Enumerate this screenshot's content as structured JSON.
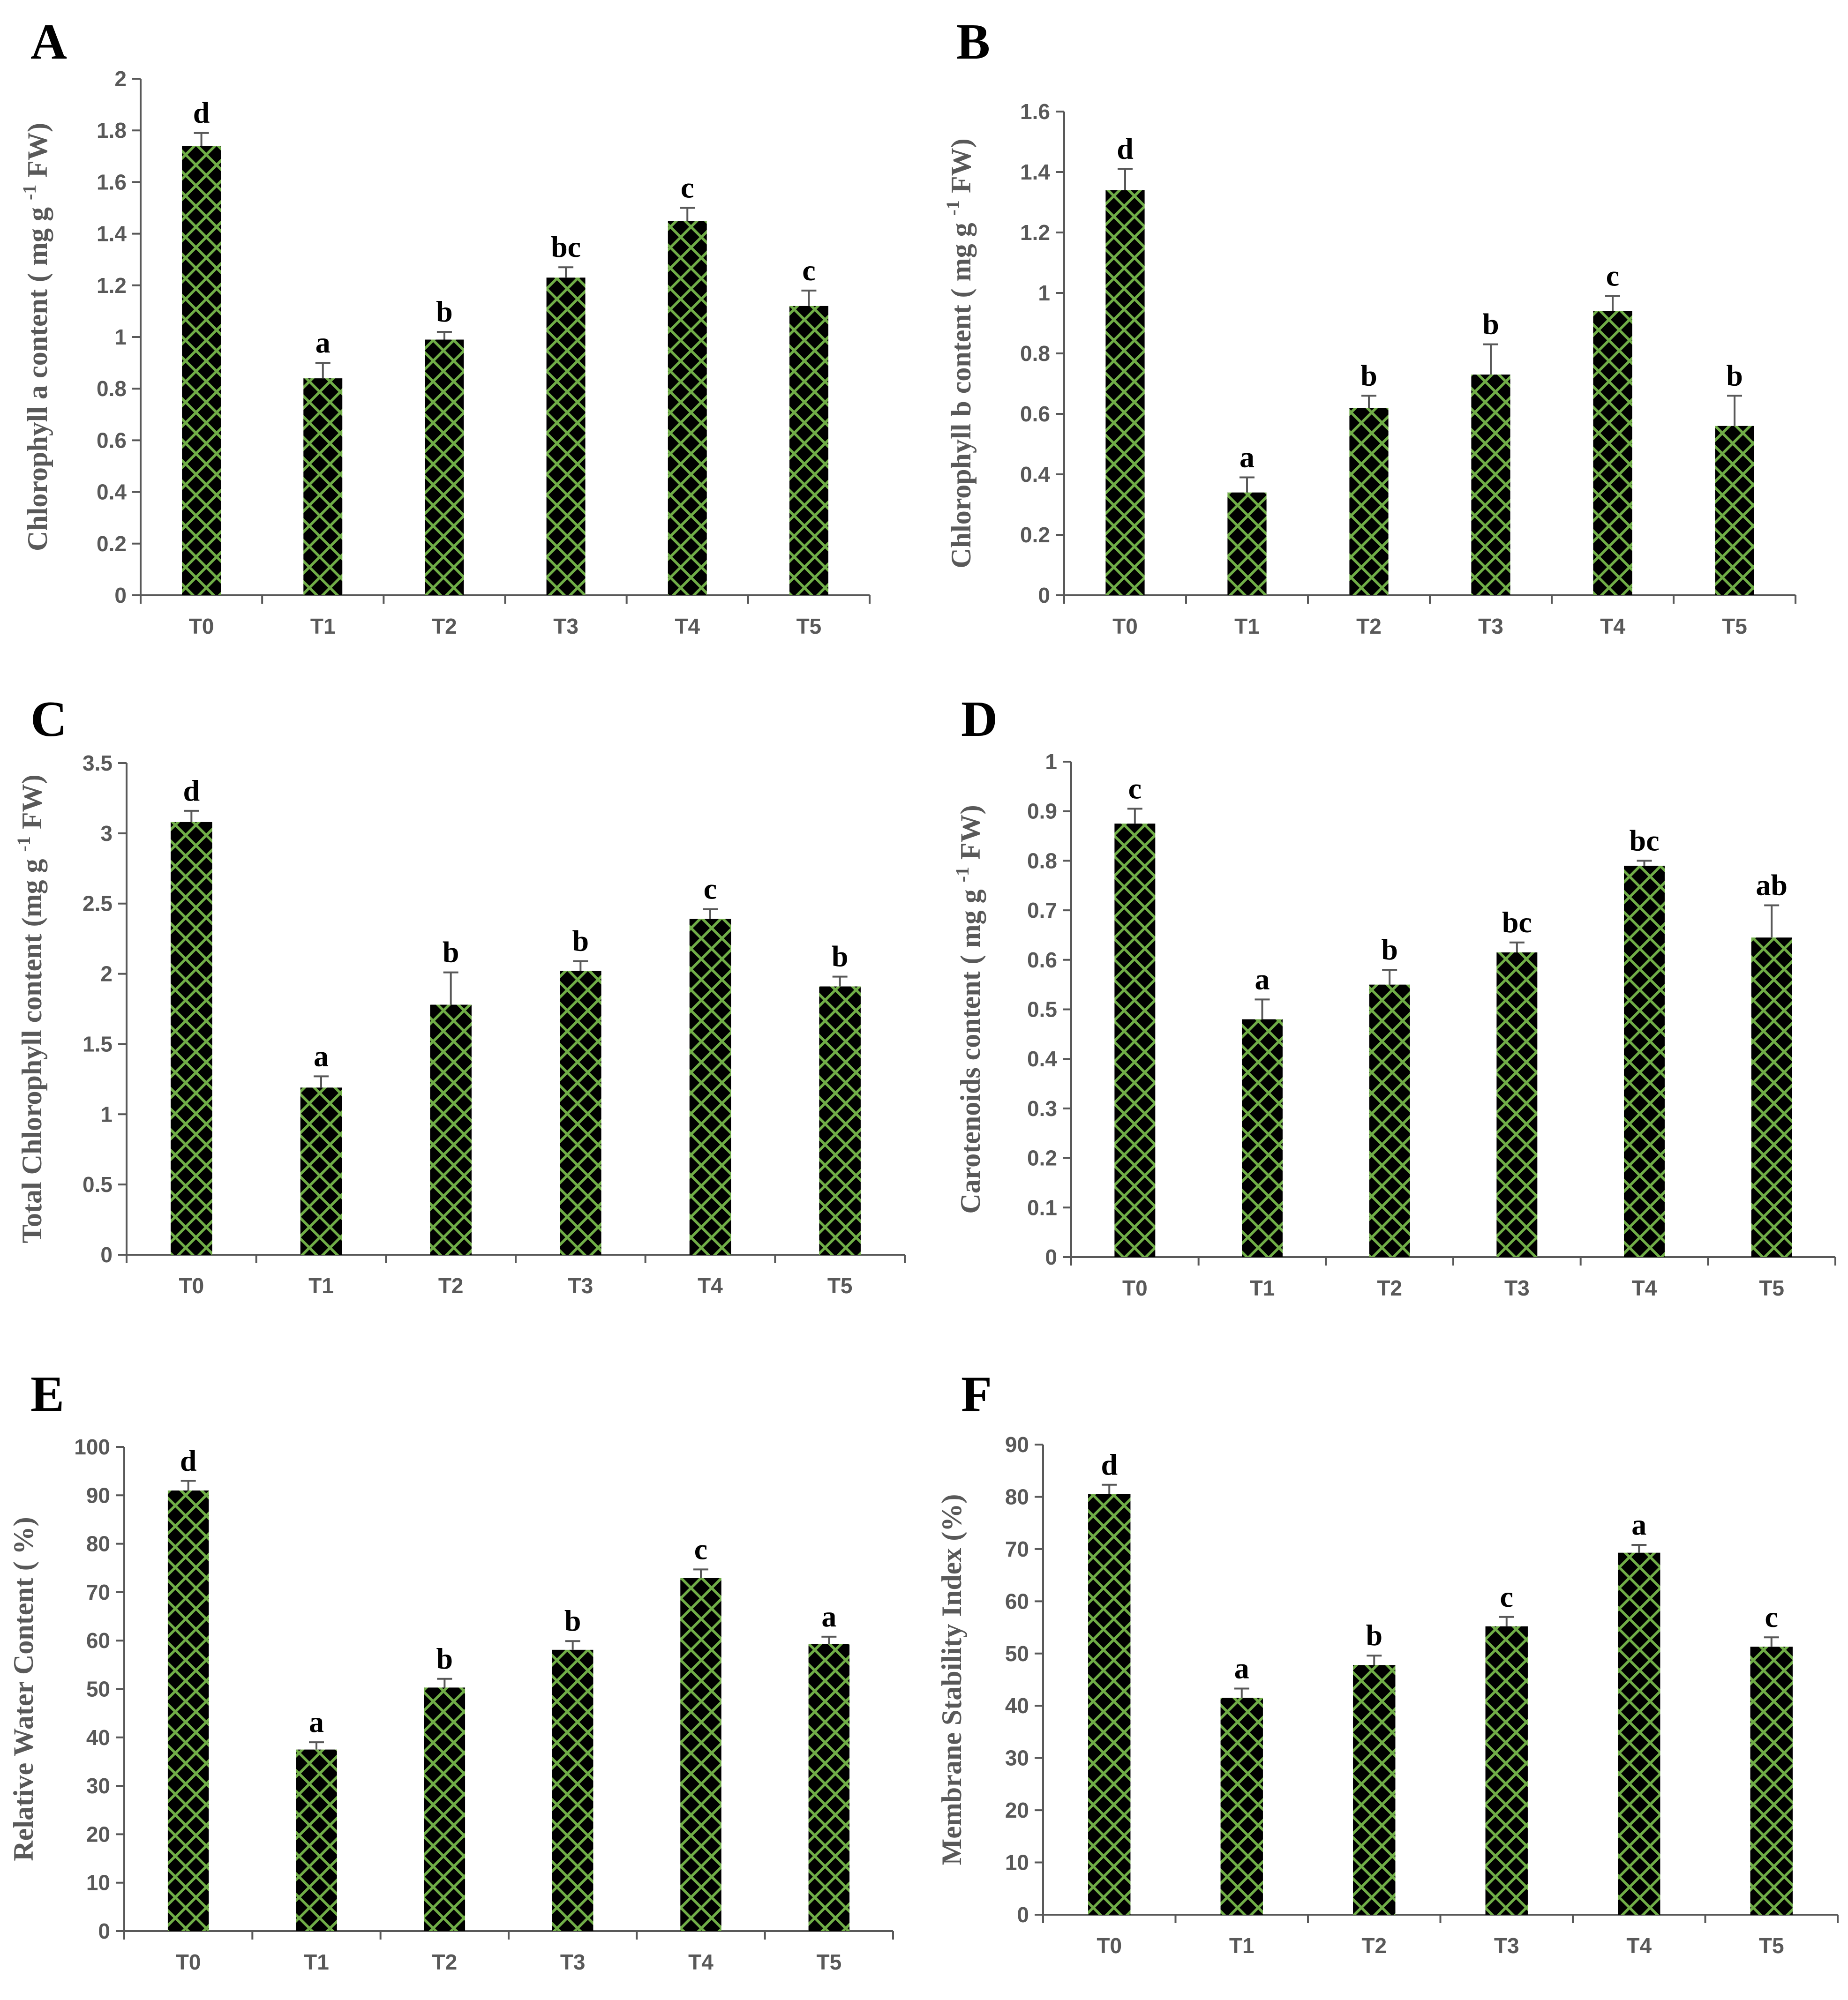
{
  "colors": {
    "bar_fill": "#70ad47",
    "bar_pattern": "#000000",
    "axis": "#595959",
    "error_bar": "#595959"
  },
  "chart_data": [
    {
      "type": "bar",
      "panel": "A",
      "title": "",
      "xlabel": "",
      "ylabel": "Chlorophyll a content ( mg g ",
      "ylabel_sup": "-1",
      "ylabel_end": " FW)",
      "ylim": [
        0,
        2
      ],
      "yticks": [
        "0",
        "0.2",
        "0.4",
        "0.6",
        "0.8",
        "1",
        "1.2",
        "1.4",
        "1.6",
        "1.8",
        "2"
      ],
      "categories": [
        "T0",
        "T1",
        "T2",
        "T3",
        "T4",
        "T5"
      ],
      "values": [
        1.74,
        0.84,
        0.99,
        1.23,
        1.45,
        1.12
      ],
      "errors": [
        0.05,
        0.06,
        0.03,
        0.04,
        0.05,
        0.06
      ],
      "letters": [
        "d",
        "a",
        "b",
        "bc",
        "c",
        "c"
      ]
    },
    {
      "type": "bar",
      "panel": "B",
      "title": "",
      "xlabel": "",
      "ylabel": "Chlorophyll b content ( mg g ",
      "ylabel_sup": "-1",
      "ylabel_end": " FW)",
      "ylim": [
        0,
        1.6
      ],
      "yticks": [
        "0",
        "0.2",
        "0.4",
        "0.6",
        "0.8",
        "1",
        "1.2",
        "1.4",
        "1.6"
      ],
      "categories": [
        "T0",
        "T1",
        "T2",
        "T3",
        "T4",
        "T5"
      ],
      "values": [
        1.34,
        0.34,
        0.62,
        0.73,
        0.94,
        0.56
      ],
      "errors": [
        0.07,
        0.05,
        0.04,
        0.1,
        0.05,
        0.1
      ],
      "letters": [
        "d",
        "a",
        "b",
        "b",
        "c",
        "b"
      ]
    },
    {
      "type": "bar",
      "panel": "C",
      "title": "",
      "xlabel": "",
      "ylabel": "Total Chlorophyll content (mg g ",
      "ylabel_sup": "-1",
      "ylabel_end": " FW)",
      "ylim": [
        0,
        3.5
      ],
      "yticks": [
        "0",
        "0.5",
        "1",
        "1.5",
        "2",
        "2.5",
        "3",
        "3.5"
      ],
      "categories": [
        "T0",
        "T1",
        "T2",
        "T3",
        "T4",
        "T5"
      ],
      "values": [
        3.08,
        1.19,
        1.78,
        2.02,
        2.39,
        1.91
      ],
      "errors": [
        0.08,
        0.08,
        0.23,
        0.07,
        0.07,
        0.07
      ],
      "letters": [
        "d",
        "a",
        "b",
        "b",
        "c",
        "b"
      ]
    },
    {
      "type": "bar",
      "panel": "D",
      "title": "",
      "xlabel": "",
      "ylabel": "Carotenoids content ( mg g ",
      "ylabel_sup": "-1",
      "ylabel_end": " FW)",
      "ylim": [
        0,
        1
      ],
      "yticks": [
        "0",
        "0.1",
        "0.2",
        "0.3",
        "0.4",
        "0.5",
        "0.6",
        "0.7",
        "0.8",
        "0.9",
        "1"
      ],
      "categories": [
        "T0",
        "T1",
        "T2",
        "T3",
        "T4",
        "T5"
      ],
      "values": [
        0.875,
        0.48,
        0.55,
        0.615,
        0.79,
        0.645
      ],
      "errors": [
        0.03,
        0.04,
        0.03,
        0.02,
        0.01,
        0.065
      ],
      "letters": [
        "c",
        "a",
        "b",
        "bc",
        "bc",
        "ab"
      ]
    },
    {
      "type": "bar",
      "panel": "E",
      "title": "",
      "xlabel": "",
      "ylabel": "Relative Water Content ( %)",
      "ylabel_sup": "",
      "ylabel_end": "",
      "ylim": [
        0,
        100
      ],
      "yticks": [
        "0",
        "10",
        "20",
        "30",
        "40",
        "50",
        "60",
        "70",
        "80",
        "90",
        "100"
      ],
      "categories": [
        "T0",
        "T1",
        "T2",
        "T3",
        "T4",
        "T5"
      ],
      "values": [
        91,
        37.5,
        50.3,
        58.1,
        72.9,
        59.3
      ],
      "errors": [
        2,
        1.5,
        1.8,
        1.8,
        1.8,
        1.5
      ],
      "letters": [
        "d",
        "a",
        "b",
        "b",
        "c",
        "a"
      ]
    },
    {
      "type": "bar",
      "panel": "F",
      "title": "",
      "xlabel": "",
      "ylabel": "Membrane Stability Index (%)",
      "ylabel_sup": "",
      "ylabel_end": "",
      "ylim": [
        0,
        90
      ],
      "yticks": [
        "0",
        "10",
        "20",
        "30",
        "40",
        "50",
        "60",
        "70",
        "80",
        "90"
      ],
      "categories": [
        "T0",
        "T1",
        "T2",
        "T3",
        "T4",
        "T5"
      ],
      "values": [
        80.5,
        41.5,
        47.8,
        55.2,
        69.3,
        51.3
      ],
      "errors": [
        1.8,
        1.8,
        1.8,
        1.8,
        1.5,
        1.8
      ],
      "letters": [
        "d",
        "a",
        "b",
        "c",
        "a",
        "c"
      ]
    }
  ]
}
